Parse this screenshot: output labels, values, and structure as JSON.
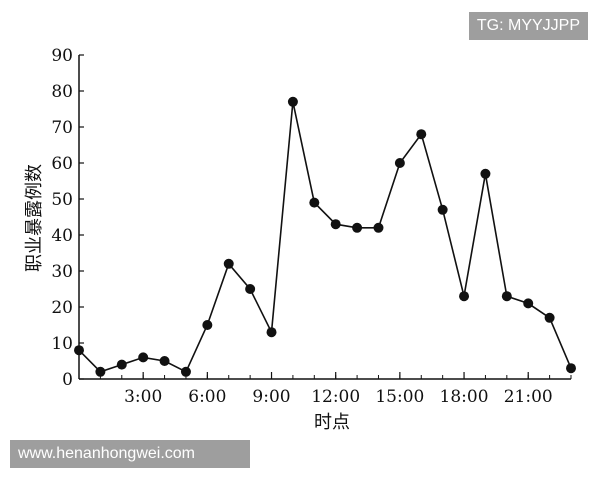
{
  "watermarks": {
    "top_right": "TG: MYYJJPP",
    "bottom_left": "www.henanhongwei.com"
  },
  "chart_data": {
    "type": "line",
    "title": "",
    "xlabel": "时点",
    "ylabel": "职业暴露例数",
    "xlim": [
      0,
      23
    ],
    "ylim": [
      0,
      90
    ],
    "yticks": [
      0,
      10,
      20,
      30,
      40,
      50,
      60,
      70,
      80,
      90
    ],
    "xticks": [
      {
        "value": 3,
        "label": "3:00"
      },
      {
        "value": 6,
        "label": "6:00"
      },
      {
        "value": 9,
        "label": "9:00"
      },
      {
        "value": 12,
        "label": "12:00"
      },
      {
        "value": 15,
        "label": "15:00"
      },
      {
        "value": 18,
        "label": "18:00"
      },
      {
        "value": 21,
        "label": "21:00"
      }
    ],
    "grid": false,
    "line_color": "#111111",
    "marker_color": "#111111",
    "x": [
      0,
      1,
      2,
      3,
      4,
      5,
      6,
      7,
      8,
      9,
      10,
      11,
      12,
      13,
      14,
      15,
      16,
      17,
      18,
      19,
      20,
      21,
      22,
      23
    ],
    "values": [
      8,
      2,
      4,
      6,
      5,
      2,
      15,
      32,
      25,
      13,
      77,
      49,
      43,
      42,
      42,
      60,
      68,
      47,
      23,
      57,
      23,
      21,
      17,
      3
    ]
  }
}
